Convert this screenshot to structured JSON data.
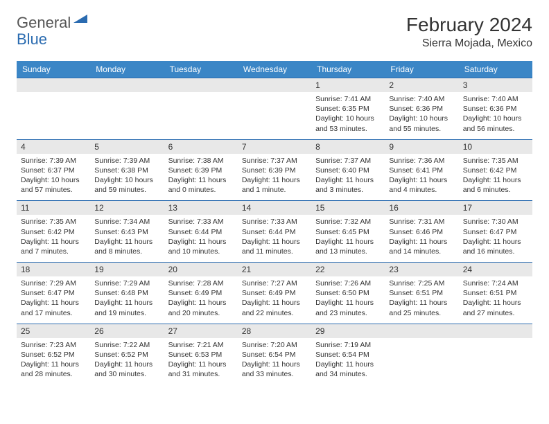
{
  "logo": {
    "general": "General",
    "blue": "Blue"
  },
  "title": "February 2024",
  "location": "Sierra Mojada, Mexico",
  "colors": {
    "header_bg": "#3b86c6",
    "border": "#2a6bb0",
    "daynum_bg": "#e8e8e8",
    "text": "#333333",
    "logo_gray": "#555555",
    "logo_blue": "#2a6bb0"
  },
  "day_headers": [
    "Sunday",
    "Monday",
    "Tuesday",
    "Wednesday",
    "Thursday",
    "Friday",
    "Saturday"
  ],
  "weeks": [
    {
      "nums": [
        "",
        "",
        "",
        "",
        "1",
        "2",
        "3"
      ],
      "cells": [
        null,
        null,
        null,
        null,
        {
          "sunrise": "7:41 AM",
          "sunset": "6:35 PM",
          "daylight": "10 hours and 53 minutes."
        },
        {
          "sunrise": "7:40 AM",
          "sunset": "6:36 PM",
          "daylight": "10 hours and 55 minutes."
        },
        {
          "sunrise": "7:40 AM",
          "sunset": "6:36 PM",
          "daylight": "10 hours and 56 minutes."
        }
      ]
    },
    {
      "nums": [
        "4",
        "5",
        "6",
        "7",
        "8",
        "9",
        "10"
      ],
      "cells": [
        {
          "sunrise": "7:39 AM",
          "sunset": "6:37 PM",
          "daylight": "10 hours and 57 minutes."
        },
        {
          "sunrise": "7:39 AM",
          "sunset": "6:38 PM",
          "daylight": "10 hours and 59 minutes."
        },
        {
          "sunrise": "7:38 AM",
          "sunset": "6:39 PM",
          "daylight": "11 hours and 0 minutes."
        },
        {
          "sunrise": "7:37 AM",
          "sunset": "6:39 PM",
          "daylight": "11 hours and 1 minute."
        },
        {
          "sunrise": "7:37 AM",
          "sunset": "6:40 PM",
          "daylight": "11 hours and 3 minutes."
        },
        {
          "sunrise": "7:36 AM",
          "sunset": "6:41 PM",
          "daylight": "11 hours and 4 minutes."
        },
        {
          "sunrise": "7:35 AM",
          "sunset": "6:42 PM",
          "daylight": "11 hours and 6 minutes."
        }
      ]
    },
    {
      "nums": [
        "11",
        "12",
        "13",
        "14",
        "15",
        "16",
        "17"
      ],
      "cells": [
        {
          "sunrise": "7:35 AM",
          "sunset": "6:42 PM",
          "daylight": "11 hours and 7 minutes."
        },
        {
          "sunrise": "7:34 AM",
          "sunset": "6:43 PM",
          "daylight": "11 hours and 8 minutes."
        },
        {
          "sunrise": "7:33 AM",
          "sunset": "6:44 PM",
          "daylight": "11 hours and 10 minutes."
        },
        {
          "sunrise": "7:33 AM",
          "sunset": "6:44 PM",
          "daylight": "11 hours and 11 minutes."
        },
        {
          "sunrise": "7:32 AM",
          "sunset": "6:45 PM",
          "daylight": "11 hours and 13 minutes."
        },
        {
          "sunrise": "7:31 AM",
          "sunset": "6:46 PM",
          "daylight": "11 hours and 14 minutes."
        },
        {
          "sunrise": "7:30 AM",
          "sunset": "6:47 PM",
          "daylight": "11 hours and 16 minutes."
        }
      ]
    },
    {
      "nums": [
        "18",
        "19",
        "20",
        "21",
        "22",
        "23",
        "24"
      ],
      "cells": [
        {
          "sunrise": "7:29 AM",
          "sunset": "6:47 PM",
          "daylight": "11 hours and 17 minutes."
        },
        {
          "sunrise": "7:29 AM",
          "sunset": "6:48 PM",
          "daylight": "11 hours and 19 minutes."
        },
        {
          "sunrise": "7:28 AM",
          "sunset": "6:49 PM",
          "daylight": "11 hours and 20 minutes."
        },
        {
          "sunrise": "7:27 AM",
          "sunset": "6:49 PM",
          "daylight": "11 hours and 22 minutes."
        },
        {
          "sunrise": "7:26 AM",
          "sunset": "6:50 PM",
          "daylight": "11 hours and 23 minutes."
        },
        {
          "sunrise": "7:25 AM",
          "sunset": "6:51 PM",
          "daylight": "11 hours and 25 minutes."
        },
        {
          "sunrise": "7:24 AM",
          "sunset": "6:51 PM",
          "daylight": "11 hours and 27 minutes."
        }
      ]
    },
    {
      "nums": [
        "25",
        "26",
        "27",
        "28",
        "29",
        "",
        ""
      ],
      "cells": [
        {
          "sunrise": "7:23 AM",
          "sunset": "6:52 PM",
          "daylight": "11 hours and 28 minutes."
        },
        {
          "sunrise": "7:22 AM",
          "sunset": "6:52 PM",
          "daylight": "11 hours and 30 minutes."
        },
        {
          "sunrise": "7:21 AM",
          "sunset": "6:53 PM",
          "daylight": "11 hours and 31 minutes."
        },
        {
          "sunrise": "7:20 AM",
          "sunset": "6:54 PM",
          "daylight": "11 hours and 33 minutes."
        },
        {
          "sunrise": "7:19 AM",
          "sunset": "6:54 PM",
          "daylight": "11 hours and 34 minutes."
        },
        null,
        null
      ]
    }
  ],
  "labels": {
    "sunrise": "Sunrise: ",
    "sunset": "Sunset: ",
    "daylight": "Daylight: "
  }
}
